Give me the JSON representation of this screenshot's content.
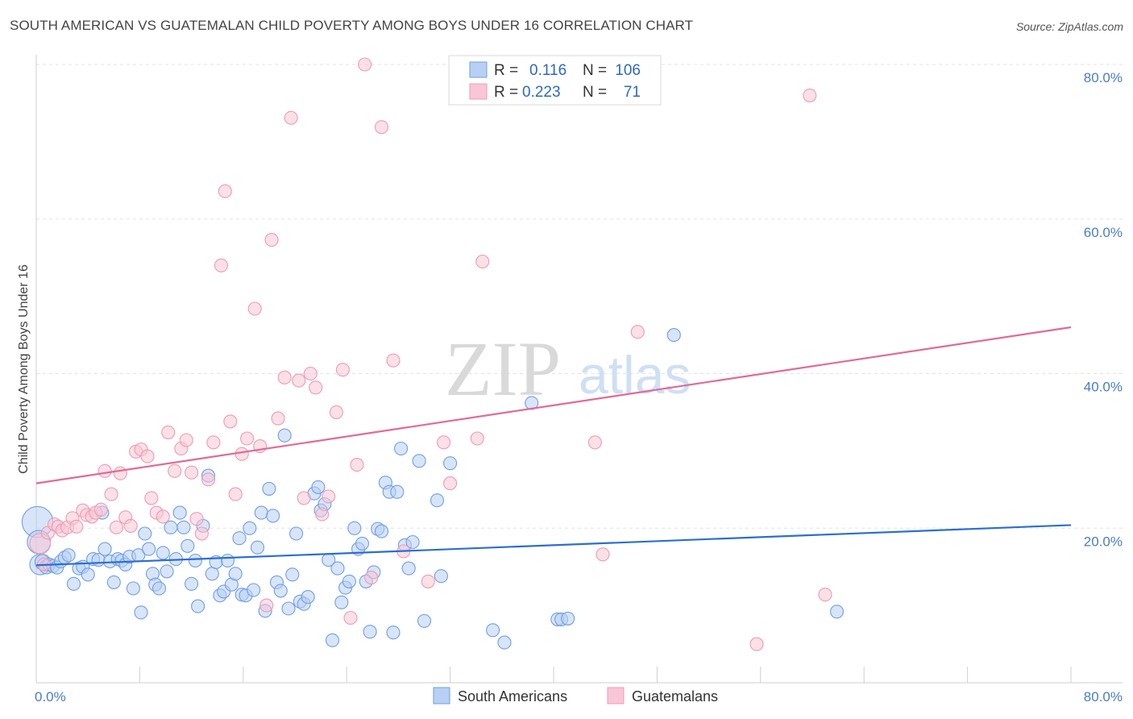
{
  "title": "SOUTH AMERICAN VS GUATEMALAN CHILD POVERTY AMONG BOYS UNDER 16 CORRELATION CHART",
  "source": "Source: ZipAtlas.com",
  "watermark": {
    "zip": "ZIP",
    "atlas": "atlas"
  },
  "stats_legend": [
    {
      "r_label": "R =",
      "r_value": "0.116",
      "n_label": "N =",
      "n_value": "106",
      "color": "#6f9ee8"
    },
    {
      "r_label": "R =",
      "r_value": "0.223",
      "n_label": "N =",
      "n_value": "71",
      "color": "#ef9ab5"
    }
  ],
  "chart_data": {
    "type": "scatter",
    "xlabel": "",
    "ylabel": "Child Poverty Among Boys Under 16",
    "xlim": [
      0,
      80
    ],
    "ylim": [
      0,
      80
    ],
    "x_tick_labels": [
      "0.0%",
      "80.0%"
    ],
    "y_ticks": [
      20,
      40,
      60,
      80
    ],
    "y_tick_labels": [
      "20.0%",
      "40.0%",
      "60.0%",
      "80.0%"
    ],
    "grid": true,
    "legend_position": "bottom-center",
    "series": [
      {
        "name": "South Americans",
        "color": "#6f9ee8",
        "fill": "#b8d0f3",
        "trend": {
          "x": [
            0,
            80
          ],
          "y": [
            15.2,
            20.4
          ]
        },
        "points": [
          [
            0.1,
            20.8,
            2.4
          ],
          [
            0.2,
            18.2,
            1.8
          ],
          [
            0.3,
            15.3,
            1.6
          ],
          [
            0.5,
            15.6,
            1.2
          ],
          [
            0.8,
            15.0,
            1.1
          ],
          [
            1.0,
            15.3,
            1
          ],
          [
            1.3,
            15.1,
            1
          ],
          [
            1.6,
            14.9,
            1
          ],
          [
            1.9,
            15.7,
            1
          ],
          [
            2.2,
            16.2,
            1
          ],
          [
            2.5,
            16.5,
            1
          ],
          [
            2.9,
            12.8,
            1
          ],
          [
            3.3,
            14.8,
            1
          ],
          [
            3.6,
            15.0,
            1
          ],
          [
            4.0,
            14.0,
            1
          ],
          [
            4.4,
            16.0,
            1
          ],
          [
            4.8,
            15.9,
            1
          ],
          [
            5.1,
            22.0,
            1
          ],
          [
            5.3,
            17.3,
            1
          ],
          [
            5.7,
            15.7,
            1
          ],
          [
            6.0,
            13.0,
            1
          ],
          [
            6.3,
            16.0,
            1
          ],
          [
            6.6,
            15.8,
            1
          ],
          [
            6.9,
            15.3,
            1
          ],
          [
            7.2,
            16.3,
            1
          ],
          [
            7.5,
            12.2,
            1
          ],
          [
            7.9,
            16.5,
            1
          ],
          [
            8.1,
            9.1,
            1
          ],
          [
            8.4,
            19.3,
            1
          ],
          [
            8.7,
            17.3,
            1
          ],
          [
            9.0,
            14.1,
            1
          ],
          [
            9.2,
            12.7,
            1
          ],
          [
            9.5,
            12.2,
            1
          ],
          [
            9.8,
            16.8,
            1
          ],
          [
            10.1,
            14.4,
            1
          ],
          [
            10.4,
            20.1,
            1
          ],
          [
            10.8,
            16.0,
            1
          ],
          [
            11.1,
            22.0,
            1
          ],
          [
            11.4,
            20.1,
            1
          ],
          [
            11.7,
            17.7,
            1
          ],
          [
            12.0,
            12.8,
            1
          ],
          [
            12.3,
            15.8,
            1
          ],
          [
            12.5,
            9.9,
            1
          ],
          [
            12.9,
            20.3,
            1
          ],
          [
            13.3,
            26.8,
            1
          ],
          [
            13.6,
            14.1,
            1
          ],
          [
            13.9,
            15.6,
            1
          ],
          [
            14.2,
            11.3,
            1
          ],
          [
            14.5,
            11.8,
            1
          ],
          [
            14.8,
            15.8,
            1
          ],
          [
            15.1,
            12.7,
            1
          ],
          [
            15.4,
            14.1,
            1
          ],
          [
            15.7,
            18.7,
            1
          ],
          [
            15.9,
            11.4,
            1
          ],
          [
            16.2,
            11.3,
            1
          ],
          [
            16.5,
            20.0,
            1
          ],
          [
            16.8,
            12.0,
            1
          ],
          [
            17.1,
            17.5,
            1
          ],
          [
            17.4,
            22.0,
            1
          ],
          [
            17.7,
            9.3,
            1
          ],
          [
            18.0,
            25.1,
            1
          ],
          [
            18.3,
            21.6,
            1
          ],
          [
            18.6,
            13.0,
            1
          ],
          [
            18.9,
            11.9,
            1
          ],
          [
            19.2,
            32.0,
            1
          ],
          [
            19.5,
            9.6,
            1
          ],
          [
            19.8,
            14.0,
            1
          ],
          [
            20.1,
            19.3,
            1
          ],
          [
            20.4,
            10.5,
            1
          ],
          [
            20.7,
            10.2,
            1
          ],
          [
            21.0,
            11.1,
            1
          ],
          [
            21.5,
            24.5,
            1
          ],
          [
            21.8,
            25.3,
            1
          ],
          [
            22.0,
            22.3,
            1
          ],
          [
            22.3,
            23.1,
            1
          ],
          [
            22.6,
            15.9,
            1
          ],
          [
            22.9,
            5.5,
            1
          ],
          [
            23.3,
            14.8,
            1
          ],
          [
            23.6,
            10.4,
            1
          ],
          [
            23.9,
            12.3,
            1
          ],
          [
            24.2,
            13.1,
            1
          ],
          [
            24.6,
            20.0,
            1
          ],
          [
            24.9,
            17.3,
            1
          ],
          [
            25.2,
            18.0,
            1
          ],
          [
            25.5,
            13.1,
            1
          ],
          [
            25.8,
            6.6,
            1
          ],
          [
            26.1,
            14.3,
            1
          ],
          [
            26.4,
            19.9,
            1
          ],
          [
            26.7,
            19.6,
            1
          ],
          [
            27.0,
            25.9,
            1
          ],
          [
            27.3,
            24.7,
            1
          ],
          [
            27.6,
            6.5,
            1
          ],
          [
            27.9,
            24.7,
            1
          ],
          [
            28.2,
            30.3,
            1
          ],
          [
            28.5,
            17.8,
            1
          ],
          [
            28.8,
            14.8,
            1
          ],
          [
            29.1,
            18.2,
            1
          ],
          [
            29.6,
            28.7,
            1
          ],
          [
            30.0,
            8.0,
            1
          ],
          [
            31.0,
            23.6,
            1
          ],
          [
            31.3,
            13.8,
            1
          ],
          [
            32.0,
            28.4,
            1
          ],
          [
            35.3,
            6.8,
            1
          ],
          [
            36.2,
            5.2,
            1
          ],
          [
            38.3,
            36.2,
            1
          ],
          [
            40.3,
            8.2,
            1
          ],
          [
            40.6,
            8.2,
            1
          ],
          [
            41.1,
            8.3,
            1
          ],
          [
            49.3,
            45.0,
            1
          ],
          [
            61.9,
            9.2,
            1
          ]
        ]
      },
      {
        "name": "Guatemalans",
        "color": "#ef9ab5",
        "fill": "#f8c6d6",
        "trend": {
          "x": [
            0,
            80
          ],
          "y": [
            25.8,
            46.0
          ]
        },
        "points": [
          [
            0.3,
            18.0,
            1.6
          ],
          [
            0.6,
            15.3,
            1
          ],
          [
            0.9,
            19.4,
            1
          ],
          [
            1.4,
            20.5,
            1
          ],
          [
            1.7,
            20.2,
            1
          ],
          [
            2.0,
            19.7,
            1
          ],
          [
            2.4,
            20.1,
            1
          ],
          [
            2.8,
            21.3,
            1
          ],
          [
            3.1,
            20.2,
            1
          ],
          [
            3.6,
            22.3,
            1
          ],
          [
            3.9,
            21.7,
            1
          ],
          [
            4.3,
            21.5,
            1
          ],
          [
            4.6,
            22.0,
            1
          ],
          [
            5.0,
            22.4,
            1
          ],
          [
            5.3,
            27.4,
            1
          ],
          [
            5.8,
            24.4,
            1
          ],
          [
            6.2,
            20.1,
            1
          ],
          [
            6.5,
            27.1,
            1
          ],
          [
            6.9,
            21.4,
            1
          ],
          [
            7.3,
            20.3,
            1
          ],
          [
            7.7,
            29.9,
            1
          ],
          [
            8.1,
            30.2,
            1
          ],
          [
            8.6,
            29.3,
            1
          ],
          [
            8.9,
            23.9,
            1
          ],
          [
            9.3,
            22.0,
            1
          ],
          [
            9.8,
            21.5,
            1
          ],
          [
            10.2,
            32.4,
            1
          ],
          [
            10.7,
            27.4,
            1
          ],
          [
            11.2,
            30.3,
            1
          ],
          [
            11.6,
            31.4,
            1
          ],
          [
            12.0,
            27.2,
            1
          ],
          [
            12.4,
            21.2,
            1
          ],
          [
            12.8,
            19.3,
            1
          ],
          [
            13.3,
            26.3,
            1
          ],
          [
            13.7,
            31.1,
            1
          ],
          [
            14.3,
            54.0,
            1
          ],
          [
            14.6,
            63.6,
            1
          ],
          [
            15.0,
            33.8,
            1
          ],
          [
            15.4,
            24.4,
            1
          ],
          [
            15.9,
            29.6,
            1
          ],
          [
            16.3,
            31.6,
            1
          ],
          [
            16.9,
            48.4,
            1
          ],
          [
            17.3,
            30.6,
            1
          ],
          [
            17.8,
            10.0,
            1
          ],
          [
            18.2,
            57.3,
            1
          ],
          [
            18.7,
            34.2,
            1
          ],
          [
            19.2,
            39.5,
            1
          ],
          [
            19.7,
            73.1,
            1
          ],
          [
            20.3,
            39.1,
            1
          ],
          [
            20.7,
            23.9,
            1
          ],
          [
            21.2,
            40.0,
            1
          ],
          [
            21.6,
            38.2,
            1
          ],
          [
            22.1,
            21.8,
            1
          ],
          [
            22.6,
            24.1,
            1
          ],
          [
            23.2,
            35.0,
            1
          ],
          [
            23.7,
            40.5,
            1
          ],
          [
            24.3,
            8.4,
            1
          ],
          [
            24.8,
            28.2,
            1
          ],
          [
            25.4,
            80.0,
            1
          ],
          [
            25.9,
            13.6,
            1
          ],
          [
            26.7,
            71.9,
            1
          ],
          [
            27.6,
            41.7,
            1
          ],
          [
            28.4,
            17.0,
            1
          ],
          [
            30.3,
            13.1,
            1
          ],
          [
            31.5,
            31.1,
            1
          ],
          [
            32.0,
            25.8,
            1
          ],
          [
            34.1,
            31.6,
            1
          ],
          [
            34.5,
            54.5,
            1
          ],
          [
            43.2,
            31.1,
            1
          ],
          [
            43.8,
            16.6,
            1
          ],
          [
            46.5,
            45.4,
            1
          ],
          [
            55.7,
            5.0,
            1
          ],
          [
            59.8,
            76.0,
            1
          ],
          [
            61.0,
            11.4,
            1
          ]
        ]
      }
    ]
  }
}
